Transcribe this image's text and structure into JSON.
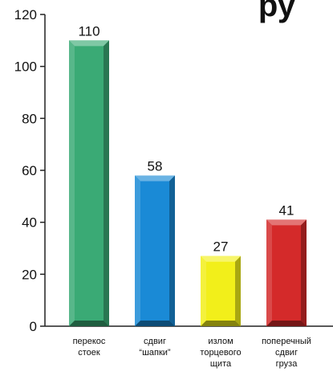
{
  "chart_data": {
    "type": "bar",
    "title_fragment": "ру",
    "categories": [
      [
        "перекос",
        "стоек"
      ],
      [
        "сдвиг",
        "“шапки”"
      ],
      [
        "излом",
        "торцевого",
        "щита"
      ],
      [
        "поперечный",
        "сдвиг",
        "груза"
      ]
    ],
    "values": [
      110,
      58,
      27,
      41
    ],
    "bar_labels": [
      "110",
      "58",
      "27",
      "41"
    ],
    "colors": [
      "#3aaa75",
      "#1a8ad6",
      "#f2ef1a",
      "#d42a2a"
    ],
    "ylim": [
      0,
      120
    ],
    "yticks": [
      0,
      20,
      40,
      60,
      80,
      100,
      120
    ],
    "grid": false,
    "legend": "none"
  }
}
